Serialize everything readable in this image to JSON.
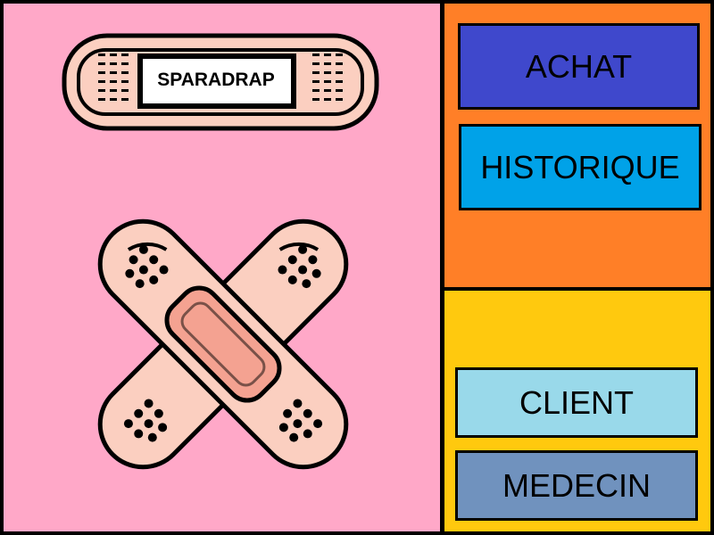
{
  "logo": {
    "label": "SPARADRAP"
  },
  "menu": {
    "achat_label": "ACHAT",
    "historique_label": "HISTORIQUE",
    "client_label": "CLIENT",
    "medecin_label": "MEDECIN"
  },
  "colors": {
    "left_background": "#ffa8c8",
    "top_right_background": "#ff7f27",
    "bottom_right_background": "#ffc90e",
    "achat_button": "#3f48cc",
    "historique_button": "#00a2e8",
    "client_button": "#99d9ea",
    "medecin_button": "#7092be",
    "bandage_skin": "#fbcfc0",
    "bandage_pad": "#f4a291"
  },
  "icons": {
    "logo_icon": "bandage-icon",
    "illustration_icon": "crossed-bandages-icon"
  }
}
